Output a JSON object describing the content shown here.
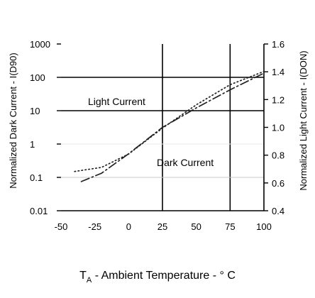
{
  "chart_data": {
    "type": "line",
    "xlabel": "T_A - Ambient Temperature - ° C",
    "xlabel_parts": {
      "main": "T",
      "sub": "A",
      "rest": " - Ambient Temperature - ° C"
    },
    "ylabel_left": "Normalized Dark Current - I(D90)",
    "ylabel_right": "Normalized Light Current - I(DON)",
    "xlim": [
      -50,
      100
    ],
    "x_ticks": [
      "-50",
      "-25",
      "0",
      "25",
      "50",
      "75",
      "100"
    ],
    "y_left_scale": "log",
    "y_left_lim": [
      0.01,
      1000
    ],
    "y_left_ticks": [
      "1000",
      "100",
      "10",
      "1",
      "0.1",
      "0.01"
    ],
    "y_left_tick_values": [
      1000,
      100,
      10,
      1,
      0.1,
      0.01
    ],
    "y_right_lim": [
      0.4,
      1.6
    ],
    "y_right_ticks": [
      "1.6",
      "1.4",
      "1.2",
      "1.0",
      "0.8",
      "0.6",
      "0.4"
    ],
    "y_right_tick_values": [
      1.6,
      1.4,
      1.2,
      1.0,
      0.8,
      0.6,
      0.4
    ],
    "grid_x": [
      25,
      75
    ],
    "grid_y_left": [
      100,
      10
    ],
    "annotations": [
      {
        "text": "Light Current",
        "series": "light"
      },
      {
        "text": "Dark Current",
        "series": "dark"
      }
    ],
    "series": [
      {
        "name": "Light Current",
        "axis": "right",
        "style": "dash-dot",
        "x": [
          -35,
          -20,
          0,
          25,
          50,
          75,
          100
        ],
        "y": [
          0.61,
          0.67,
          0.81,
          1.0,
          1.14,
          1.27,
          1.39
        ]
      },
      {
        "name": "Dark Current",
        "axis": "left",
        "style": "dotted",
        "x": [
          -40,
          -20,
          0,
          25,
          50,
          75,
          100
        ],
        "y": [
          0.15,
          0.2,
          0.5,
          3,
          15,
          60,
          150
        ]
      }
    ]
  }
}
